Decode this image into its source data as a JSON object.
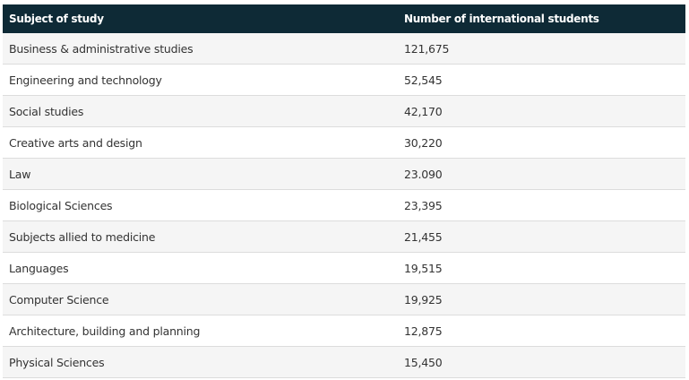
{
  "table": {
    "header": [
      "Subject of study",
      "Number of international students"
    ],
    "rows": [
      [
        "Business & administrative studies",
        "121,675"
      ],
      [
        "Engineering and technology",
        "52,545"
      ],
      [
        "Social studies",
        "42,170"
      ],
      [
        "Creative arts and design",
        "30,220"
      ],
      [
        "Law",
        "23.090"
      ],
      [
        "Biological Sciences",
        "23,395"
      ],
      [
        "Subjects allied to medicine",
        "21,455"
      ],
      [
        "Languages",
        "19,515"
      ],
      [
        "Computer Science",
        "19,925"
      ],
      [
        "Architecture, building and planning",
        "12,875"
      ],
      [
        "Physical Sciences",
        "15,450"
      ]
    ]
  }
}
